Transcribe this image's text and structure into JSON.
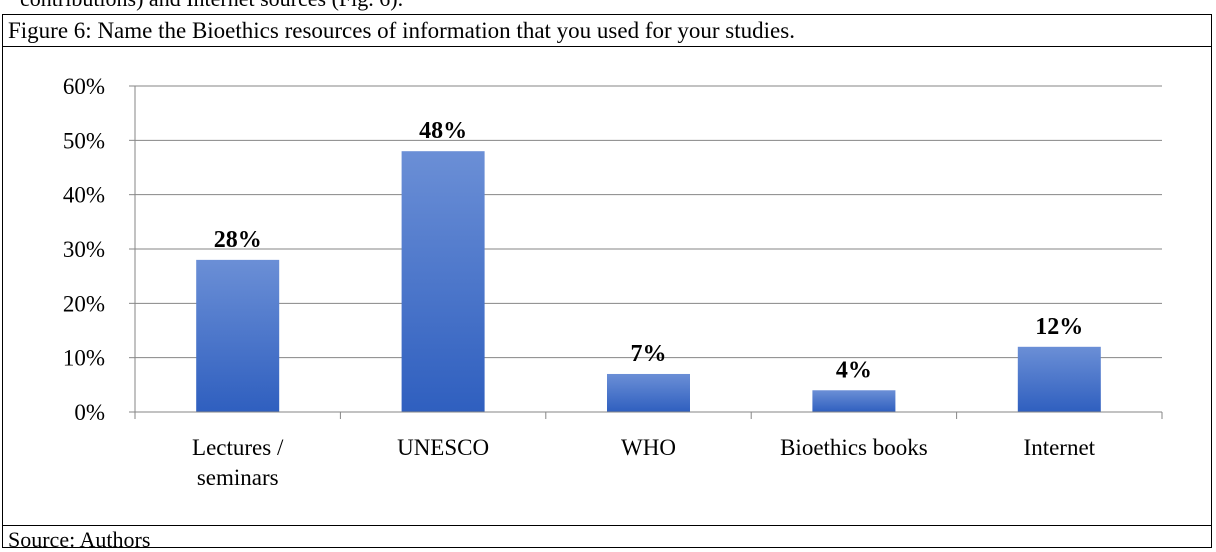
{
  "top_text": "contributions) and Internet sources (Fig. 6).",
  "caption": "Figure 6: Name the Bioethics resources of information that you used for your studies.",
  "source": "Source: Authors",
  "colors": {
    "bar_top": "#6b8fd6",
    "bar_bottom": "#2f5fbf",
    "gridline": "#868686",
    "axis": "#868686"
  },
  "chart_data": {
    "type": "bar",
    "categories": [
      "Lectures / seminars",
      "UNESCO",
      "WHO",
      "Bioethics books",
      "Internet"
    ],
    "category_lines": [
      [
        "Lectures /",
        "seminars"
      ],
      [
        "UNESCO"
      ],
      [
        "WHO"
      ],
      [
        "Bioethics books"
      ],
      [
        "Internet"
      ]
    ],
    "values": [
      28,
      48,
      7,
      4,
      12
    ],
    "data_labels": [
      "28%",
      "48%",
      "7%",
      "4%",
      "12%"
    ],
    "ylim": [
      0,
      60
    ],
    "yticks": [
      0,
      10,
      20,
      30,
      40,
      50,
      60
    ],
    "ytick_labels": [
      "0%",
      "10%",
      "20%",
      "30%",
      "40%",
      "50%",
      "60%"
    ],
    "grid": true,
    "legend": "none",
    "title": "",
    "xlabel": "",
    "ylabel": ""
  }
}
